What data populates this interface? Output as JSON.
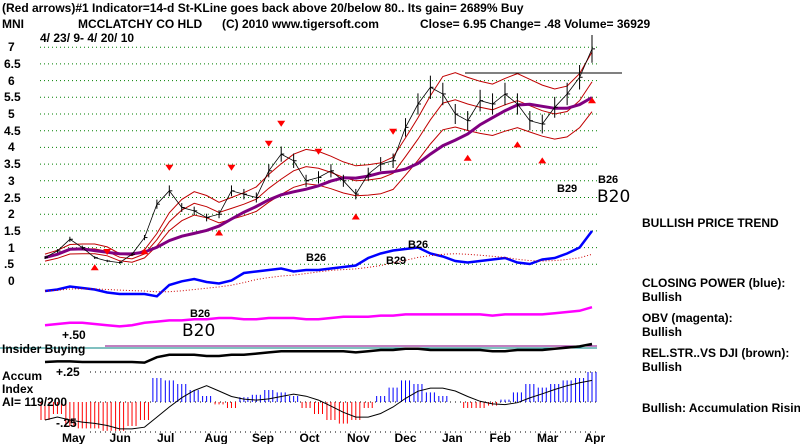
{
  "header": {
    "line1": "(Red arrows)#1 Indicator=14-d St-KLine goes back above 20/below 80.. Its gain= 2689% Buy",
    "symbol": "MNI",
    "company": "MCCLATCHY CO HLD",
    "copyright": "(C) 2010 www.tigersoft.com",
    "quote": "Close=  6.95  Change= .48 Volume= 36929",
    "date_range": "4/ 23/ 9- 4/ 20/ 10"
  },
  "right_panel": {
    "trend": "BULLISH PRICE TREND",
    "cp_label": "CLOSING POWER (blue):",
    "cp_value": "Bullish",
    "obv_label": "OBV (magenta):",
    "obv_value": "Bullish",
    "rs_label": "REL.STR..VS DJI (brown):",
    "rs_value": "Bullish",
    "accum_status": "Bullish: Accumulation Rising"
  },
  "left_panel": {
    "insider": "Insider Buying",
    "plus50": "+.50",
    "accum1": "Accum",
    "accum2": "Index",
    "ai": "AI= 119/200",
    "plus25": "+.25",
    "minus25": "-.25"
  },
  "signals": {
    "b26a": "B26",
    "b29a": "B29",
    "b26b": "B26",
    "b29b": "B29",
    "b26c": "B26",
    "b20a": "B20",
    "b26d": "B26",
    "b20b": "B20"
  },
  "colors": {
    "price": "#000000",
    "ma50": "#800080",
    "bands": "#c00000",
    "cp": "#0000ff",
    "obv": "#ff00ff",
    "rs": "#000000",
    "grid": "#008000",
    "accum_pos": "#0000ff",
    "accum_neg": "#ff0000"
  },
  "chart_data": {
    "type": "line",
    "title": "MCCLATCHY CO HLD (MNI)",
    "x_tick_labels": [
      "May",
      "Jun",
      "Jul",
      "Aug",
      "Sep",
      "Oct",
      "Nov",
      "Dec",
      "Jan",
      "Feb",
      "Mar",
      "Apr"
    ],
    "y_tick_labels": [
      "7",
      "6.5",
      "6",
      "5.5",
      "5",
      "4.5",
      "4",
      "3.5",
      "3",
      "2.5",
      "2",
      "1.5",
      "1",
      ".5",
      "0"
    ],
    "ylim": [
      0,
      7
    ],
    "series": [
      {
        "name": "Close (weekly)",
        "values": [
          0.7,
          0.9,
          1.25,
          1.0,
          0.7,
          0.6,
          0.55,
          0.8,
          1.3,
          2.3,
          2.7,
          2.2,
          2.1,
          1.9,
          2.0,
          2.7,
          2.6,
          2.5,
          3.3,
          3.8,
          3.6,
          3.0,
          3.1,
          3.3,
          3.0,
          2.6,
          3.2,
          3.5,
          3.6,
          4.6,
          5.3,
          5.8,
          5.6,
          5.0,
          4.8,
          5.4,
          5.3,
          5.6,
          5.3,
          4.8,
          4.7,
          5.2,
          5.6,
          6.1,
          6.95
        ]
      },
      {
        "name": "Closing Power",
        "values": [
          12,
          14,
          18,
          16,
          14,
          10,
          8,
          8,
          8,
          5,
          20,
          25,
          28,
          24,
          22,
          26,
          36,
          38,
          40,
          42,
          38,
          40,
          40,
          42,
          44,
          46,
          56,
          62,
          66,
          68,
          70,
          62,
          58,
          52,
          50,
          52,
          54,
          56,
          50,
          48,
          54,
          56,
          62,
          70,
          92
        ]
      },
      {
        "name": "OBV",
        "values": [
          8,
          10,
          12,
          12,
          10,
          8,
          6,
          8,
          12,
          14,
          16,
          16,
          18,
          18,
          20,
          20,
          18,
          18,
          20,
          20,
          20,
          18,
          18,
          20,
          22,
          22,
          22,
          24,
          24,
          26,
          26,
          26,
          26,
          26,
          26,
          26,
          24,
          26,
          26,
          26,
          26,
          28,
          30,
          32,
          38
        ]
      },
      {
        "name": "Rel.Str vs DJI",
        "values": [
          10,
          11,
          11,
          10,
          10,
          10,
          10,
          10,
          9,
          18,
          22,
          22,
          22,
          20,
          20,
          22,
          22,
          24,
          26,
          28,
          28,
          28,
          28,
          28,
          28,
          26,
          28,
          30,
          30,
          32,
          32,
          30,
          30,
          30,
          30,
          30,
          28,
          28,
          30,
          30,
          30,
          32,
          34,
          36,
          40
        ]
      },
      {
        "name": "Accumulation Index",
        "values": [
          -0.15,
          -0.1,
          -0.2,
          -0.22,
          -0.22,
          -0.24,
          -0.24,
          -0.2,
          -0.15,
          0.2,
          0.18,
          0.15,
          0.1,
          0.05,
          -0.02,
          -0.05,
          0.04,
          0.06,
          0.1,
          0.08,
          0.05,
          -0.05,
          -0.1,
          -0.15,
          -0.18,
          -0.15,
          -0.05,
          0.05,
          0.12,
          0.18,
          0.15,
          0.08,
          0.05,
          0.0,
          -0.05,
          -0.05,
          -0.03,
          0.02,
          0.08,
          0.15,
          0.12,
          0.15,
          0.18,
          0.2,
          0.25
        ]
      }
    ]
  }
}
